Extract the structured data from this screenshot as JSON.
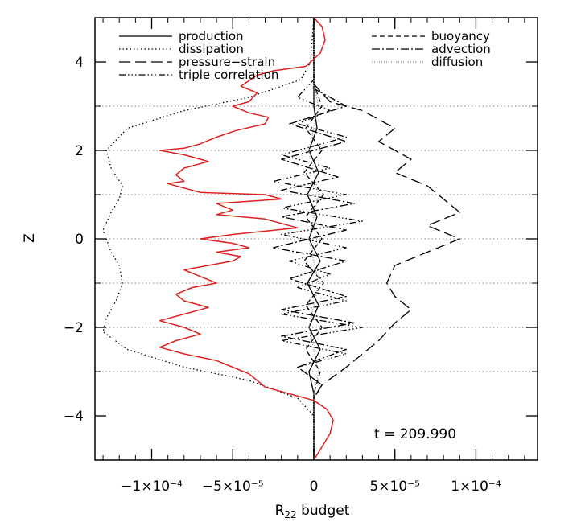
{
  "chart_data": {
    "type": "line",
    "xlabel": "R",
    "xlabel_sub": "22",
    "xlabel_rest": " budget",
    "ylabel": "Z",
    "xlim": [
      -0.000135,
      0.000138
    ],
    "ylim": [
      -5,
      5
    ],
    "x_ticks": [
      {
        "value": -0.0001,
        "label": "−1×10⁻⁴"
      },
      {
        "value": -5e-05,
        "label": "−5×10⁻⁵"
      },
      {
        "value": 0,
        "label": "0"
      },
      {
        "value": 5e-05,
        "label": "5×10⁻⁵"
      },
      {
        "value": 0.0001,
        "label": "1×10⁻⁴"
      }
    ],
    "y_ticks": [
      {
        "value": 4,
        "label": "4"
      },
      {
        "value": 2,
        "label": "2"
      },
      {
        "value": 0,
        "label": "0"
      },
      {
        "value": -2,
        "label": "−2"
      },
      {
        "value": -4,
        "label": "−4"
      }
    ],
    "hlines": [
      3,
      2,
      1,
      0,
      -1,
      -2,
      -3
    ],
    "annotation": "t = 209.990",
    "legend_left": [
      "production",
      "dissipation",
      "pressure−strain",
      "triple correlation"
    ],
    "legend_right": [
      "buoyancy",
      "advection",
      "diffusion"
    ],
    "series": [
      {
        "name": "production",
        "color": "#000000",
        "dash": "",
        "points": [
          [
            0,
            5
          ],
          [
            0,
            4
          ],
          [
            0,
            3
          ],
          [
            2e-06,
            2.5
          ],
          [
            -3e-06,
            2
          ],
          [
            3e-06,
            1.5
          ],
          [
            -4e-06,
            1
          ],
          [
            2e-06,
            0.5
          ],
          [
            -3e-06,
            0
          ],
          [
            4e-06,
            -0.5
          ],
          [
            -4e-06,
            -1
          ],
          [
            3e-06,
            -1.5
          ],
          [
            -3e-06,
            -2
          ],
          [
            4e-06,
            -2.5
          ],
          [
            -3e-06,
            -3
          ],
          [
            0,
            -3.5
          ],
          [
            0,
            -4
          ],
          [
            0,
            -5
          ]
        ]
      },
      {
        "name": "dissipation",
        "color": "#000000",
        "dash": "1.5,3",
        "points": [
          [
            0,
            5
          ],
          [
            -2e-06,
            4
          ],
          [
            -8e-06,
            3.6
          ],
          [
            -4e-05,
            3.2
          ],
          [
            -8e-05,
            2.9
          ],
          [
            -0.000115,
            2.5
          ],
          [
            -0.000128,
            2.0
          ],
          [
            -0.000125,
            1.6
          ],
          [
            -0.000118,
            1.2
          ],
          [
            -0.00012,
            0.9
          ],
          [
            -0.000125,
            0.6
          ],
          [
            -0.00013,
            0.2
          ],
          [
            -0.000128,
            0
          ],
          [
            -0.000125,
            -0.3
          ],
          [
            -0.00012,
            -0.6
          ],
          [
            -0.000118,
            -1
          ],
          [
            -0.000122,
            -1.4
          ],
          [
            -0.000128,
            -1.8
          ],
          [
            -0.00013,
            -2.1
          ],
          [
            -0.000115,
            -2.5
          ],
          [
            -8e-05,
            -2.9
          ],
          [
            -4e-05,
            -3.2
          ],
          [
            -1e-05,
            -3.6
          ],
          [
            0,
            -4
          ],
          [
            0,
            -5
          ]
        ]
      },
      {
        "name": "pressure−strain",
        "color": "#000000",
        "dash": "14,6",
        "points": [
          [
            0,
            5
          ],
          [
            0,
            3.5
          ],
          [
            1e-05,
            3.1
          ],
          [
            3e-05,
            2.9
          ],
          [
            5e-05,
            2.5
          ],
          [
            4e-05,
            2.2
          ],
          [
            6e-05,
            1.8
          ],
          [
            5e-05,
            1.5
          ],
          [
            7e-05,
            1.2
          ],
          [
            8e-05,
            0.9
          ],
          [
            9e-05,
            0.6
          ],
          [
            7e-05,
            0.3
          ],
          [
            9e-05,
            0
          ],
          [
            7e-05,
            -0.3
          ],
          [
            5e-05,
            -0.6
          ],
          [
            4.5e-05,
            -1
          ],
          [
            5e-05,
            -1.3
          ],
          [
            6e-05,
            -1.6
          ],
          [
            5e-05,
            -1.9
          ],
          [
            4e-05,
            -2.3
          ],
          [
            3e-05,
            -2.6
          ],
          [
            2e-05,
            -2.9
          ],
          [
            5e-06,
            -3.3
          ],
          [
            0,
            -3.6
          ],
          [
            0,
            -5
          ]
        ]
      },
      {
        "name": "triple correlation",
        "color": "#000000",
        "dash": "8,3,1.5,3,1.5,3,1.5,3",
        "points": [
          [
            0,
            5
          ],
          [
            0,
            3.6
          ],
          [
            -1e-05,
            3.2
          ],
          [
            1e-05,
            2.9
          ],
          [
            -1e-05,
            2.6
          ],
          [
            2e-05,
            2.3
          ],
          [
            -2e-05,
            1.9
          ],
          [
            1e-05,
            1.6
          ],
          [
            -2.5e-05,
            1.3
          ],
          [
            2e-05,
            1.0
          ],
          [
            -2e-05,
            0.7
          ],
          [
            3e-05,
            0.4
          ],
          [
            -2e-05,
            0.1
          ],
          [
            2e-05,
            -0.2
          ],
          [
            -1.5e-05,
            -0.5
          ],
          [
            1e-05,
            -0.8
          ],
          [
            -1e-05,
            -1.1
          ],
          [
            2e-05,
            -1.4
          ],
          [
            -2e-05,
            -1.7
          ],
          [
            3e-05,
            -2.0
          ],
          [
            -2e-05,
            -2.3
          ],
          [
            2e-05,
            -2.6
          ],
          [
            -1e-05,
            -2.9
          ],
          [
            5e-06,
            -3.3
          ],
          [
            0,
            -3.6
          ],
          [
            0,
            -5
          ]
        ]
      },
      {
        "name": "buoyancy",
        "color": "#000000",
        "dash": "6,4",
        "points": [
          [
            0,
            5
          ],
          [
            0,
            3.5
          ],
          [
            5e-06,
            3.0
          ],
          [
            -5e-06,
            2.5
          ],
          [
            5e-06,
            2.0
          ],
          [
            -6e-06,
            1.5
          ],
          [
            6e-06,
            1.0
          ],
          [
            -5e-06,
            0.5
          ],
          [
            5e-06,
            0
          ],
          [
            -6e-06,
            -0.5
          ],
          [
            6e-06,
            -1.0
          ],
          [
            -5e-06,
            -1.5
          ],
          [
            5e-06,
            -2.0
          ],
          [
            -5e-06,
            -2.5
          ],
          [
            4e-06,
            -3.0
          ],
          [
            0,
            -3.5
          ],
          [
            0,
            -5
          ]
        ]
      },
      {
        "name": "advection",
        "color": "#000000",
        "dash": "10,3,2,3",
        "points": [
          [
            0,
            5
          ],
          [
            0,
            3.4
          ],
          [
            2e-05,
            3.0
          ],
          [
            -1.5e-05,
            2.6
          ],
          [
            2e-05,
            2.2
          ],
          [
            -2e-05,
            1.8
          ],
          [
            1.5e-05,
            1.4
          ],
          [
            -2e-05,
            1.1
          ],
          [
            2.5e-05,
            0.8
          ],
          [
            -2e-05,
            0.5
          ],
          [
            2e-05,
            0.2
          ],
          [
            -2.5e-05,
            -0.2
          ],
          [
            2e-05,
            -0.5
          ],
          [
            -1.5e-05,
            -0.9
          ],
          [
            2e-05,
            -1.3
          ],
          [
            -2e-05,
            -1.6
          ],
          [
            2.5e-05,
            -1.9
          ],
          [
            -2e-05,
            -2.2
          ],
          [
            2e-05,
            -2.5
          ],
          [
            -1e-05,
            -2.9
          ],
          [
            5e-06,
            -3.3
          ],
          [
            0,
            -3.6
          ],
          [
            0,
            -5
          ]
        ]
      },
      {
        "name": "diffusion",
        "color": "#888888",
        "dash": "1,2",
        "points": [
          [
            0,
            5
          ],
          [
            0,
            3.5
          ],
          [
            3e-06,
            3.0
          ],
          [
            -3e-06,
            2.0
          ],
          [
            3e-06,
            1.0
          ],
          [
            -3e-06,
            0
          ],
          [
            3e-06,
            -1.0
          ],
          [
            -3e-06,
            -2.0
          ],
          [
            3e-06,
            -3.0
          ],
          [
            0,
            -3.5
          ],
          [
            0,
            -5
          ]
        ]
      },
      {
        "name": "",
        "color": "#dd2222",
        "dash": "",
        "points": [
          [
            0,
            5
          ],
          [
            5e-06,
            4.8
          ],
          [
            7e-06,
            4.5
          ],
          [
            4e-06,
            4.2
          ],
          [
            -5e-06,
            3.9
          ],
          [
            -2.5e-05,
            3.8
          ],
          [
            -3.5e-05,
            3.7
          ],
          [
            -4.5e-05,
            3.45
          ],
          [
            -3.5e-05,
            3.3
          ],
          [
            -4e-05,
            3.1
          ],
          [
            -5e-05,
            3.0
          ],
          [
            -4e-05,
            2.85
          ],
          [
            -2.8e-05,
            2.75
          ],
          [
            -3e-05,
            2.6
          ],
          [
            -4.8e-05,
            2.45
          ],
          [
            -6e-05,
            2.3
          ],
          [
            -7e-05,
            2.15
          ],
          [
            -8e-05,
            2.05
          ],
          [
            -9.5e-05,
            2.0
          ],
          [
            -8e-05,
            1.9
          ],
          [
            -6.5e-05,
            1.75
          ],
          [
            -8e-05,
            1.6
          ],
          [
            -8.5e-05,
            1.45
          ],
          [
            -8e-05,
            1.3
          ],
          [
            -9e-05,
            1.25
          ],
          [
            -8e-05,
            1.15
          ],
          [
            -7e-05,
            1.05
          ],
          [
            -3e-05,
            1.0
          ],
          [
            -2e-05,
            0.9
          ],
          [
            -6e-05,
            0.8
          ],
          [
            -5e-05,
            0.65
          ],
          [
            -6e-05,
            0.55
          ],
          [
            -3e-05,
            0.45
          ],
          [
            -2e-05,
            0.35
          ],
          [
            -1e-05,
            0.25
          ],
          [
            -5e-05,
            0.1
          ],
          [
            -7e-05,
            0.0
          ],
          [
            -5e-05,
            -0.1
          ],
          [
            -4e-05,
            -0.2
          ],
          [
            -6e-05,
            -0.3
          ],
          [
            -4.5e-05,
            -0.4
          ],
          [
            -5e-05,
            -0.5
          ],
          [
            -6.5e-05,
            -0.6
          ],
          [
            -8e-05,
            -0.7
          ],
          [
            -7e-05,
            -0.85
          ],
          [
            -6e-05,
            -1.0
          ],
          [
            -7.5e-05,
            -1.1
          ],
          [
            -8.5e-05,
            -1.25
          ],
          [
            -8e-05,
            -1.4
          ],
          [
            -6.5e-05,
            -1.55
          ],
          [
            -8e-05,
            -1.7
          ],
          [
            -9.5e-05,
            -1.85
          ],
          [
            -8e-05,
            -2.0
          ],
          [
            -7e-05,
            -2.15
          ],
          [
            -8.5e-05,
            -2.3
          ],
          [
            -9.5e-05,
            -2.45
          ],
          [
            -8e-05,
            -2.6
          ],
          [
            -6e-05,
            -2.75
          ],
          [
            -5e-05,
            -2.9
          ],
          [
            -4e-05,
            -3.05
          ],
          [
            -3.5e-05,
            -3.2
          ],
          [
            -3e-05,
            -3.35
          ],
          [
            -2e-05,
            -3.45
          ],
          [
            -1e-05,
            -3.55
          ],
          [
            0,
            -3.65
          ],
          [
            8e-06,
            -3.85
          ],
          [
            1.2e-05,
            -4.1
          ],
          [
            1e-05,
            -4.4
          ],
          [
            5e-06,
            -4.7
          ],
          [
            0,
            -5
          ]
        ]
      }
    ]
  }
}
